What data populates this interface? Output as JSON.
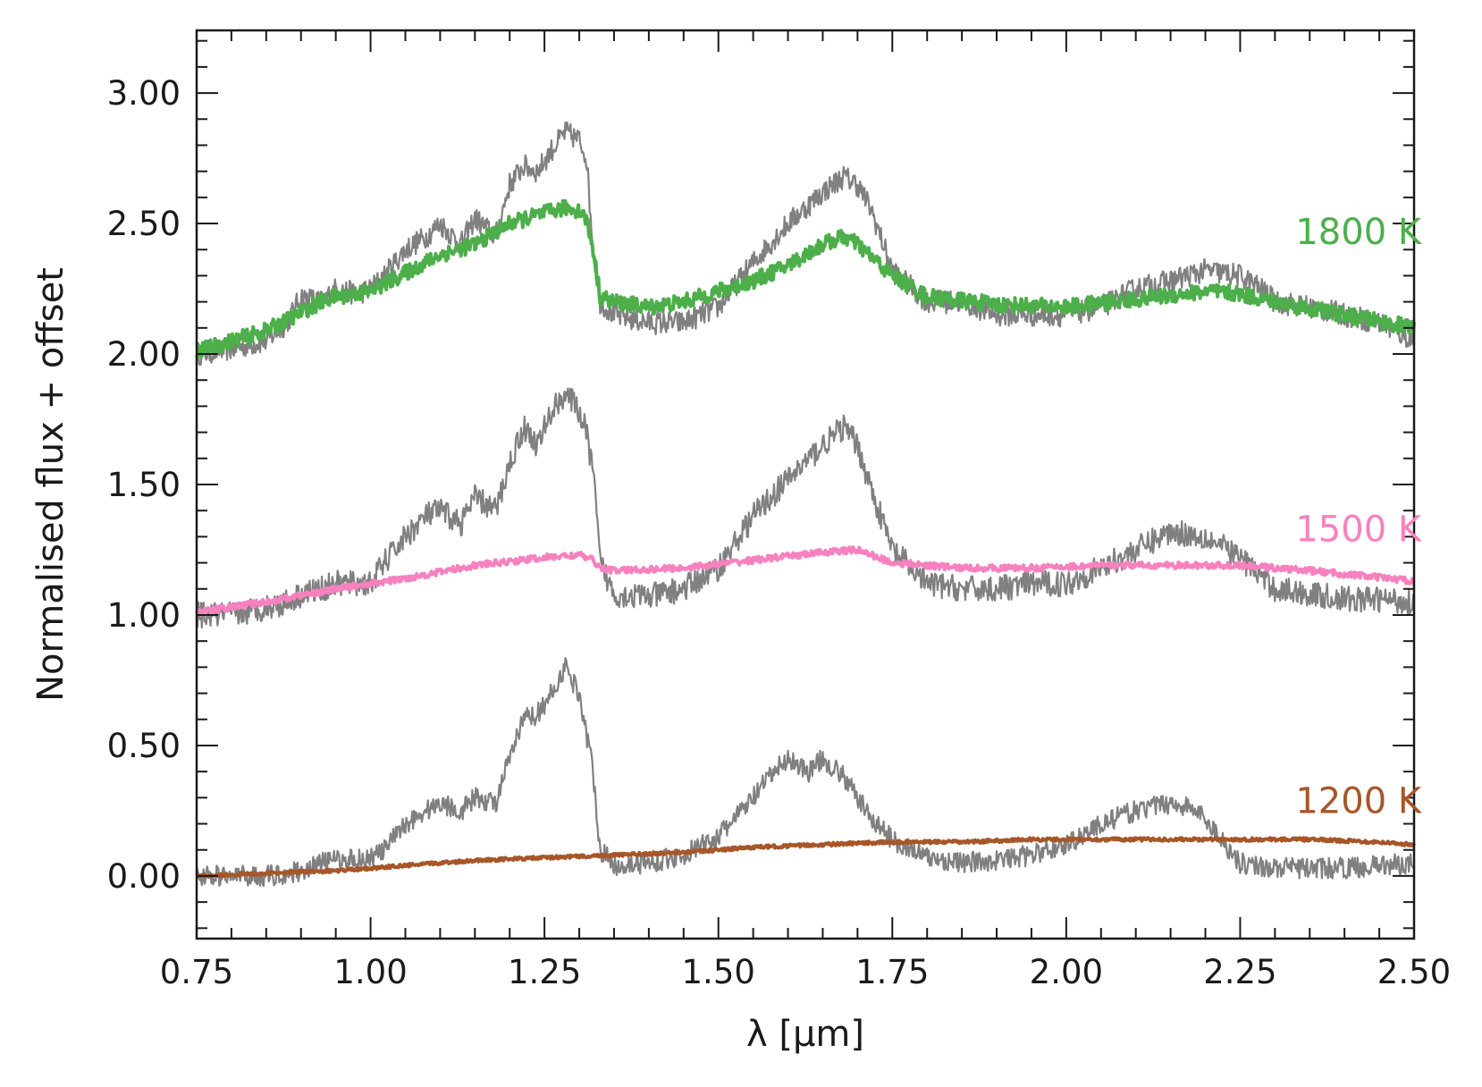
{
  "chart_data": {
    "type": "line",
    "title": "",
    "xlabel": "λ [μm]",
    "ylabel": "Normalised flux + offset",
    "xlim": [
      0.75,
      2.5
    ],
    "ylim": [
      -0.24,
      3.24
    ],
    "xticks": [
      0.75,
      1.0,
      1.25,
      1.5,
      1.75,
      2.0,
      2.25,
      2.5
    ],
    "xtick_labels": [
      "0.75",
      "1.00",
      "1.25",
      "1.50",
      "1.75",
      "2.00",
      "2.25",
      "2.50"
    ],
    "yticks": [
      0.0,
      0.5,
      1.0,
      1.5,
      2.0,
      2.5,
      3.0
    ],
    "ytick_labels": [
      "0.00",
      "0.50",
      "1.00",
      "1.50",
      "2.00",
      "2.50",
      "3.00"
    ],
    "grid": false,
    "series_labels": [
      {
        "text": "1800 K",
        "color": "#4caf4a",
        "x": 2.42,
        "y": 2.47
      },
      {
        "text": "1500 K",
        "color": "#f781bf",
        "x": 2.42,
        "y": 1.33
      },
      {
        "text": "1200 K",
        "color": "#a65628",
        "x": 2.42,
        "y": 0.29
      }
    ],
    "series": [
      {
        "color": "#808080",
        "noise": 0.045,
        "x": [
          0.75,
          0.8,
          0.85,
          0.88,
          0.9,
          0.93,
          0.95,
          0.98,
          1.0,
          1.02,
          1.05,
          1.08,
          1.1,
          1.13,
          1.15,
          1.18,
          1.2,
          1.22,
          1.24,
          1.26,
          1.28,
          1.3,
          1.31,
          1.32,
          1.33,
          1.35,
          1.4,
          1.45,
          1.5,
          1.55,
          1.6,
          1.65,
          1.68,
          1.7,
          1.72,
          1.75,
          1.8,
          1.85,
          1.9,
          1.95,
          2.0,
          2.05,
          2.1,
          2.15,
          2.2,
          2.25,
          2.28,
          2.3,
          2.35,
          2.4,
          2.45,
          2.5
        ],
        "y": [
          2.0,
          2.02,
          2.05,
          2.12,
          2.22,
          2.2,
          2.25,
          2.23,
          2.25,
          2.3,
          2.4,
          2.45,
          2.5,
          2.42,
          2.52,
          2.45,
          2.65,
          2.72,
          2.7,
          2.78,
          2.85,
          2.82,
          2.76,
          2.4,
          2.2,
          2.15,
          2.12,
          2.12,
          2.18,
          2.35,
          2.5,
          2.62,
          2.68,
          2.65,
          2.55,
          2.32,
          2.2,
          2.2,
          2.15,
          2.15,
          2.15,
          2.18,
          2.25,
          2.28,
          2.32,
          2.3,
          2.25,
          2.2,
          2.18,
          2.15,
          2.12,
          2.05
        ]
      },
      {
        "color": "#4caf4a",
        "noise": 0.03,
        "x": [
          0.75,
          0.8,
          0.85,
          0.88,
          0.9,
          0.93,
          0.95,
          1.0,
          1.05,
          1.1,
          1.15,
          1.2,
          1.25,
          1.28,
          1.3,
          1.31,
          1.32,
          1.33,
          1.35,
          1.4,
          1.45,
          1.5,
          1.55,
          1.6,
          1.65,
          1.68,
          1.7,
          1.75,
          1.8,
          1.9,
          2.0,
          2.1,
          2.2,
          2.25,
          2.3,
          2.4,
          2.5
        ],
        "y": [
          2.01,
          2.05,
          2.09,
          2.13,
          2.16,
          2.2,
          2.22,
          2.24,
          2.31,
          2.38,
          2.42,
          2.5,
          2.54,
          2.56,
          2.55,
          2.52,
          2.4,
          2.22,
          2.2,
          2.18,
          2.2,
          2.24,
          2.28,
          2.34,
          2.42,
          2.45,
          2.42,
          2.3,
          2.22,
          2.19,
          2.18,
          2.21,
          2.24,
          2.23,
          2.2,
          2.15,
          2.1
        ]
      },
      {
        "color": "#808080",
        "noise": 0.05,
        "x": [
          0.75,
          0.8,
          0.85,
          0.88,
          0.9,
          0.93,
          0.95,
          1.0,
          1.02,
          1.05,
          1.08,
          1.1,
          1.13,
          1.15,
          1.18,
          1.2,
          1.22,
          1.24,
          1.26,
          1.28,
          1.3,
          1.31,
          1.32,
          1.33,
          1.35,
          1.4,
          1.45,
          1.5,
          1.55,
          1.6,
          1.65,
          1.68,
          1.7,
          1.72,
          1.75,
          1.8,
          1.85,
          1.9,
          1.95,
          2.0,
          2.05,
          2.1,
          2.15,
          2.2,
          2.25,
          2.28,
          2.3,
          2.35,
          2.4,
          2.45,
          2.5
        ],
        "y": [
          1.0,
          1.0,
          1.03,
          1.05,
          1.08,
          1.1,
          1.12,
          1.12,
          1.2,
          1.3,
          1.38,
          1.4,
          1.35,
          1.45,
          1.4,
          1.58,
          1.72,
          1.65,
          1.78,
          1.85,
          1.78,
          1.7,
          1.55,
          1.2,
          1.08,
          1.07,
          1.1,
          1.18,
          1.38,
          1.52,
          1.65,
          1.72,
          1.65,
          1.48,
          1.25,
          1.12,
          1.1,
          1.1,
          1.12,
          1.12,
          1.18,
          1.25,
          1.32,
          1.3,
          1.22,
          1.15,
          1.1,
          1.08,
          1.06,
          1.06,
          1.05
        ]
      },
      {
        "color": "#f781bf",
        "noise": 0.012,
        "x": [
          0.75,
          0.85,
          0.95,
          1.05,
          1.15,
          1.25,
          1.3,
          1.32,
          1.33,
          1.35,
          1.45,
          1.55,
          1.65,
          1.7,
          1.75,
          1.85,
          1.95,
          2.05,
          2.15,
          2.25,
          2.35,
          2.5
        ],
        "y": [
          1.01,
          1.05,
          1.1,
          1.14,
          1.19,
          1.22,
          1.23,
          1.21,
          1.18,
          1.17,
          1.18,
          1.21,
          1.24,
          1.25,
          1.2,
          1.18,
          1.18,
          1.19,
          1.19,
          1.19,
          1.17,
          1.13
        ]
      },
      {
        "color": "#808080",
        "noise": 0.04,
        "x": [
          0.75,
          0.8,
          0.85,
          0.88,
          0.9,
          0.93,
          0.95,
          1.0,
          1.02,
          1.05,
          1.08,
          1.1,
          1.13,
          1.15,
          1.18,
          1.2,
          1.22,
          1.24,
          1.26,
          1.28,
          1.3,
          1.31,
          1.32,
          1.33,
          1.35,
          1.4,
          1.45,
          1.5,
          1.55,
          1.58,
          1.6,
          1.63,
          1.65,
          1.68,
          1.7,
          1.72,
          1.75,
          1.8,
          1.85,
          1.9,
          1.95,
          2.0,
          2.05,
          2.1,
          2.15,
          2.18,
          2.2,
          2.22,
          2.25,
          2.3,
          2.35,
          2.4,
          2.45,
          2.5
        ],
        "y": [
          0.0,
          0.0,
          0.0,
          0.01,
          0.02,
          0.05,
          0.06,
          0.07,
          0.1,
          0.2,
          0.25,
          0.28,
          0.25,
          0.3,
          0.28,
          0.45,
          0.6,
          0.62,
          0.7,
          0.8,
          0.7,
          0.55,
          0.4,
          0.1,
          0.04,
          0.05,
          0.08,
          0.15,
          0.3,
          0.4,
          0.45,
          0.4,
          0.45,
          0.38,
          0.3,
          0.22,
          0.14,
          0.07,
          0.05,
          0.06,
          0.08,
          0.12,
          0.2,
          0.25,
          0.28,
          0.26,
          0.22,
          0.15,
          0.05,
          0.03,
          0.03,
          0.03,
          0.04,
          0.05
        ]
      },
      {
        "color": "#a65628",
        "noise": 0.006,
        "x": [
          0.75,
          0.85,
          0.95,
          1.05,
          1.15,
          1.25,
          1.35,
          1.45,
          1.55,
          1.65,
          1.75,
          1.85,
          1.95,
          2.05,
          2.15,
          2.25,
          2.35,
          2.45,
          2.5
        ],
        "y": [
          0.0,
          0.01,
          0.02,
          0.04,
          0.06,
          0.07,
          0.08,
          0.09,
          0.11,
          0.12,
          0.13,
          0.13,
          0.14,
          0.14,
          0.14,
          0.14,
          0.14,
          0.13,
          0.12
        ]
      }
    ]
  }
}
